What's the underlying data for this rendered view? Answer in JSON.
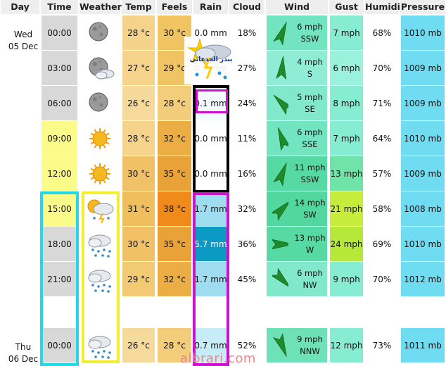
{
  "headers": [
    "Day",
    "Time",
    "Weather",
    "Temp",
    "Feels",
    "Rain",
    "Cloud",
    "Wind",
    "Gust",
    "Humidity",
    "Pressure"
  ],
  "days": [
    {
      "name": "Wed",
      "date": "05 Dec"
    },
    {
      "name": "Thu",
      "date": "06 Dec"
    }
  ],
  "rows": [
    {
      "time": "00:00",
      "weather": "moon-icon",
      "temp": "28 °c",
      "feels": "30 °c",
      "rain": "0.0 mm",
      "cloud": "18%",
      "wind_speed": "6 mph",
      "wind_dir": "SSW",
      "wind_deg": 202,
      "gust": "7 mph",
      "humidity": "68%",
      "pressure": "1010 mb",
      "colors": {
        "time": "#d8d8d8",
        "temp": "#f5d38a",
        "feels": "#f1c463",
        "rain": "#ffffff",
        "wind": "#72e4c0",
        "gust": "#86edd3",
        "press": "#6fdcf2"
      }
    },
    {
      "time": "03:00",
      "weather": "moon-cloud-icon",
      "temp": "27 °c",
      "feels": "29 °c",
      "rain": "0.0 mm",
      "cloud": "27%",
      "wind_speed": "4 mph",
      "wind_dir": "S",
      "wind_deg": 185,
      "gust": "6 mph",
      "humidity": "70%",
      "pressure": "1009 mb",
      "colors": {
        "time": "#d8d8d8",
        "temp": "#f5d38a",
        "feels": "#f1c463",
        "rain": "#ffffff",
        "wind": "#90ecd4",
        "gust": "#9af1dc",
        "press": "#6fdcf2"
      }
    },
    {
      "time": "06:00",
      "weather": "moon-icon",
      "temp": "26 °c",
      "feels": "28 °c",
      "rain": "0.1 mm",
      "cloud": "24%",
      "wind_speed": "5 mph",
      "wind_dir": "SE",
      "wind_deg": 135,
      "gust": "8 mph",
      "humidity": "71%",
      "pressure": "1009 mb",
      "colors": {
        "time": "#d8d8d8",
        "temp": "#f6da9c",
        "feels": "#f3cd7a",
        "rain": "#f4fbff",
        "wind": "#82e8cb",
        "gust": "#86edd3",
        "press": "#6fdcf2"
      }
    },
    {
      "time": "09:00",
      "weather": "sun-icon",
      "temp": "28 °c",
      "feels": "32 °c",
      "rain": "0.0 mm",
      "cloud": "11%",
      "wind_speed": "6 mph",
      "wind_dir": "SSE",
      "wind_deg": 160,
      "gust": "7 mph",
      "humidity": "64%",
      "pressure": "1010 mb",
      "colors": {
        "time": "#fbfb8a",
        "temp": "#f5d38a",
        "feels": "#ebad44",
        "rain": "#ffffff",
        "wind": "#72e4c0",
        "gust": "#86edd3",
        "press": "#6fdcf2"
      }
    },
    {
      "time": "12:00",
      "weather": "sun-icon",
      "temp": "30 °c",
      "feels": "35 °c",
      "rain": "0.0 mm",
      "cloud": "16%",
      "wind_speed": "11 mph",
      "wind_dir": "SSW",
      "wind_deg": 202,
      "gust": "13 mph",
      "humidity": "57%",
      "pressure": "1009 mb",
      "colors": {
        "time": "#fbfb8a",
        "temp": "#f0c166",
        "feels": "#e9a237",
        "rain": "#ffffff",
        "wind": "#56d9a3",
        "gust": "#70e4a8",
        "press": "#6fdcf2"
      }
    },
    {
      "time": "15:00",
      "weather": "sun-thunder-rain-icon",
      "temp": "31 °c",
      "feels": "38 °c",
      "rain": "1.7 mm",
      "cloud": "32%",
      "wind_speed": "14 mph",
      "wind_dir": "SW",
      "wind_deg": 225,
      "gust": "21 mph",
      "humidity": "58%",
      "pressure": "1008 mb",
      "colors": {
        "time": "#fbfb8a",
        "temp": "#efbf5e",
        "feels": "#f08a1a",
        "rain": "#9edcf0",
        "wind": "#52d79e",
        "gust": "#c6ec3c",
        "press": "#6fdcf2"
      }
    },
    {
      "time": "18:00",
      "weather": "rain-cloud-icon",
      "temp": "30 °c",
      "feels": "35 °c",
      "rain": "5.7 mm",
      "cloud": "36%",
      "wind_speed": "13 mph",
      "wind_dir": "W",
      "wind_deg": 270,
      "gust": "24 mph",
      "humidity": "69%",
      "pressure": "1010 mb",
      "colors": {
        "time": "#d8d8d8",
        "temp": "#f0c166",
        "feels": "#e9a237",
        "rain": "#0a9ac2",
        "wind": "#56d9a3",
        "gust": "#b6e83a",
        "press": "#6fdcf2"
      }
    },
    {
      "time": "21:00",
      "weather": "rain-cloud-icon",
      "temp": "29 °c",
      "feels": "32 °c",
      "rain": "1.7 mm",
      "cloud": "45%",
      "wind_speed": "6 mph",
      "wind_dir": "NW",
      "wind_deg": 315,
      "gust": "9 mph",
      "humidity": "70%",
      "pressure": "1012 mb",
      "colors": {
        "time": "#d8d8d8",
        "temp": "#f3ca74",
        "feels": "#ebad44",
        "rain": "#9edcf0",
        "wind": "#82e8cb",
        "gust": "#86edd3",
        "press": "#6fdcf2"
      }
    },
    {
      "time": "00:00",
      "weather": "rain-cloud-icon",
      "temp": "26 °c",
      "feels": "28 °c",
      "rain": "0.7 mm",
      "cloud": "52%",
      "wind_speed": "9 mph",
      "wind_dir": "NNW",
      "wind_deg": 338,
      "gust": "12 mph",
      "humidity": "73%",
      "pressure": "1011 mb",
      "colors": {
        "time": "#d8d8d8",
        "temp": "#f6da9c",
        "feels": "#f3cd7a",
        "rain": "#c6ecf8",
        "wind": "#6fe1b8",
        "gust": "#86edd3",
        "press": "#6fdcf2"
      }
    }
  ],
  "overlay": {
    "badge_text": "بندر الجدعاني",
    "watermark": "albrari.com"
  }
}
